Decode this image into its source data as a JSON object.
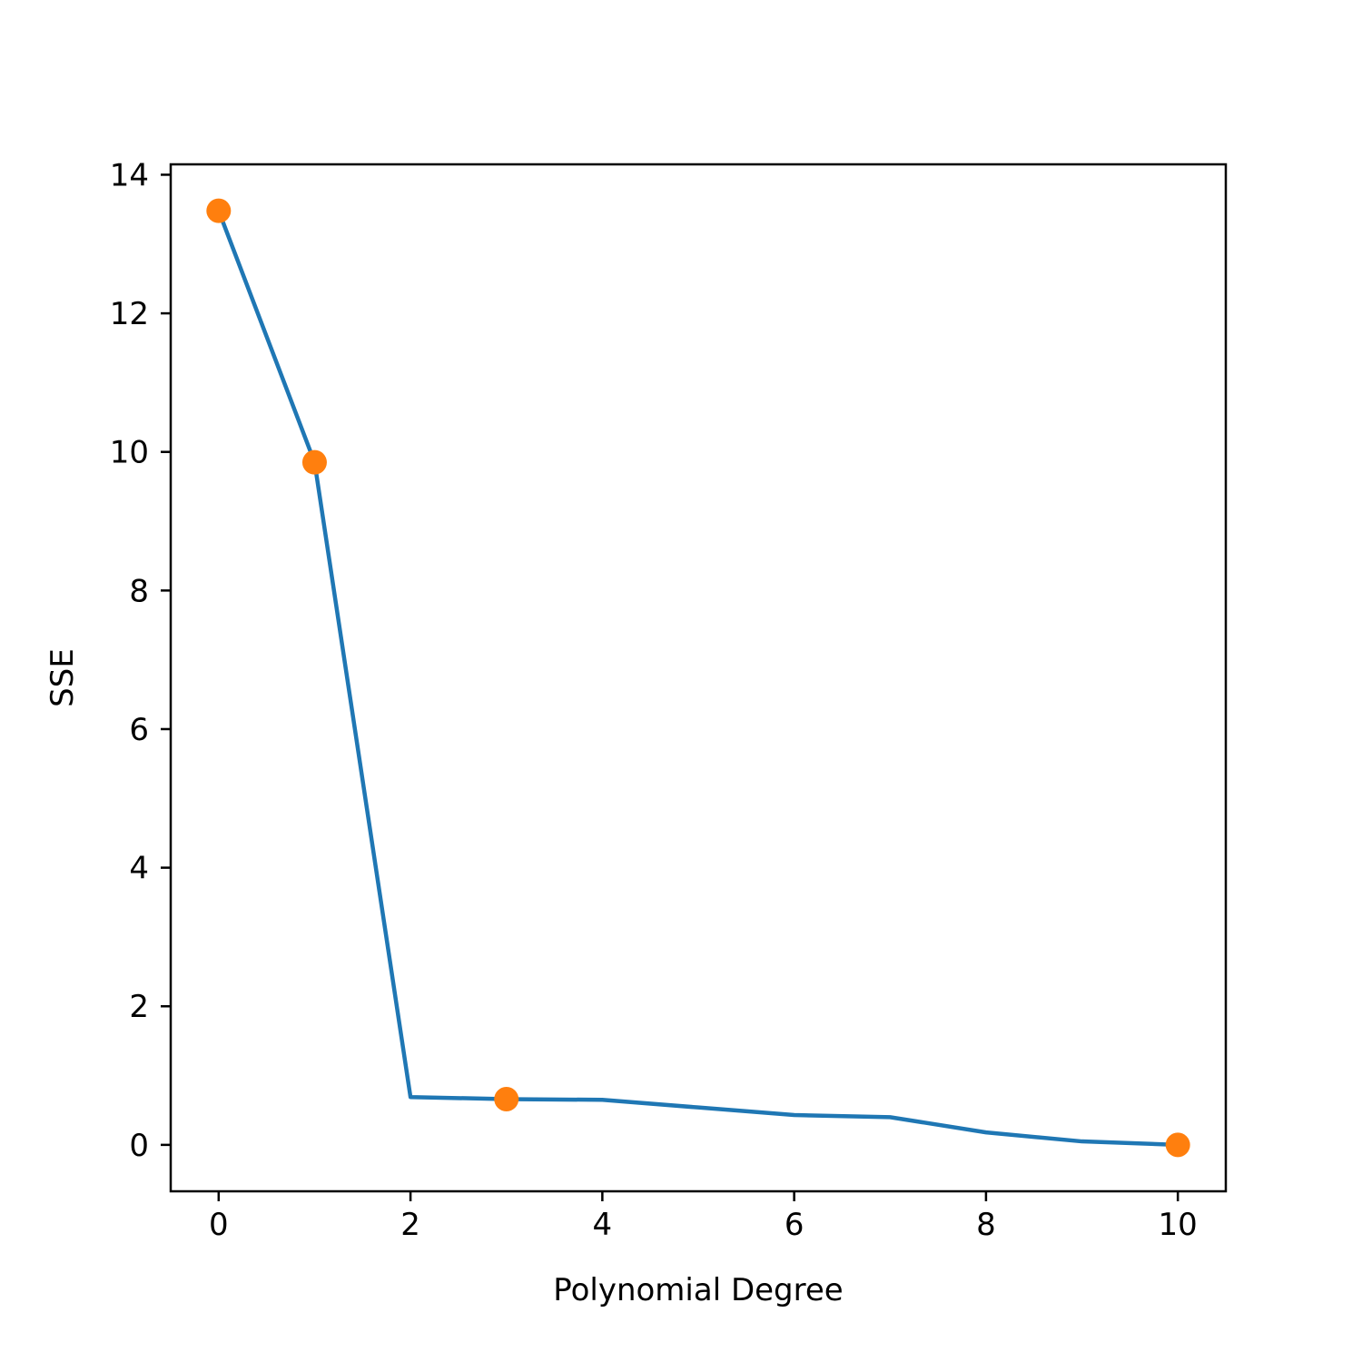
{
  "chart_data": {
    "type": "line",
    "title": "",
    "xlabel": "Polynomial Degree",
    "ylabel": "SSE",
    "xlim": [
      -0.5,
      10.5
    ],
    "ylim": [
      -0.67,
      14.15
    ],
    "x_ticks": [
      0,
      2,
      4,
      6,
      8,
      10
    ],
    "y_ticks": [
      0,
      2,
      4,
      6,
      8,
      10,
      12,
      14
    ],
    "grid": false,
    "series": [
      {
        "kind": "line",
        "color": "#1f77b4",
        "x": [
          0,
          1,
          2,
          3,
          4,
          5,
          6,
          7,
          8,
          9,
          10
        ],
        "y": [
          13.48,
          9.85,
          0.69,
          0.66,
          0.65,
          0.54,
          0.43,
          0.4,
          0.18,
          0.05,
          0.0
        ]
      },
      {
        "kind": "markers",
        "color": "#ff7f0e",
        "x": [
          0,
          1,
          3,
          10
        ],
        "y": [
          13.48,
          9.85,
          0.66,
          0.0
        ]
      }
    ]
  }
}
